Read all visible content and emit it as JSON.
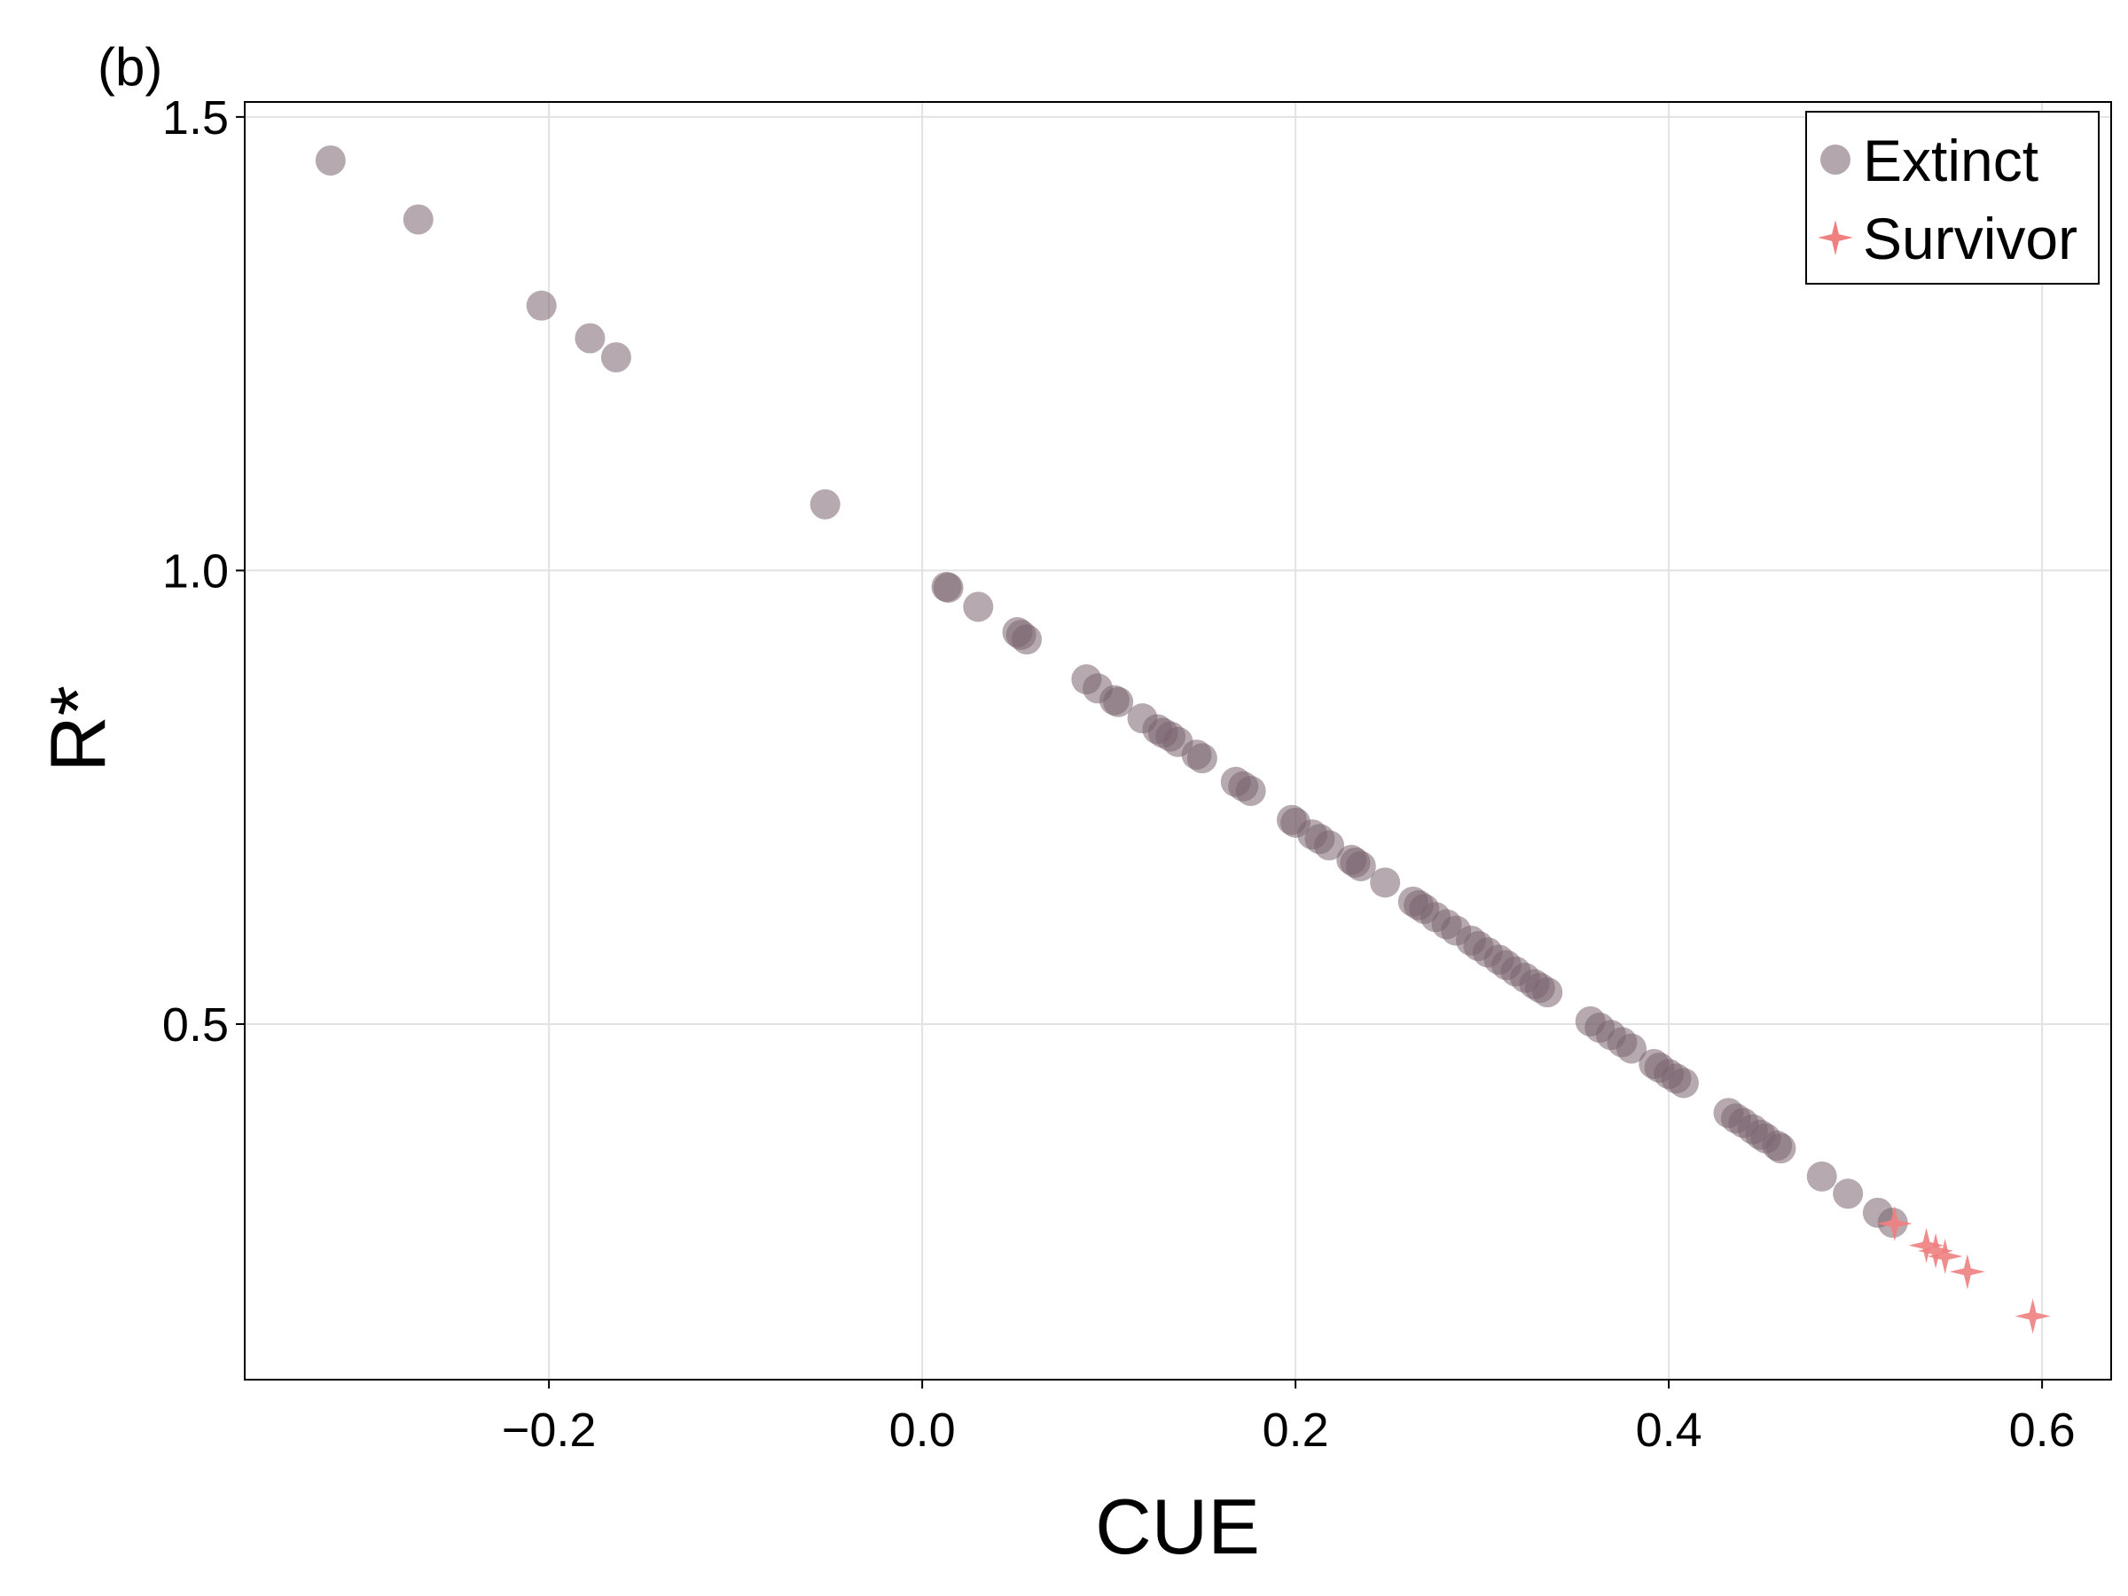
{
  "panel_label": "(b)",
  "colors": {
    "extinct": "#7a6570",
    "survivor": "#f08080",
    "grid": "#e2e2e2",
    "frame": "#000000"
  },
  "chart_data": {
    "type": "scatter",
    "xlabel": "CUE",
    "ylabel": "R*",
    "xlim": [
      -0.363,
      0.637
    ],
    "ylim": [
      0.108,
      1.5165
    ],
    "xticks": [
      -0.2,
      0.0,
      0.2,
      0.4,
      0.6
    ],
    "xtick_labels": [
      "−0.2",
      "0.0",
      "0.2",
      "0.4",
      "0.6"
    ],
    "yticks": [
      0.5,
      1.0,
      1.5
    ],
    "ytick_labels": [
      "0.5",
      "1.0",
      "1.5"
    ],
    "grid": true,
    "legend": {
      "position": "top-right",
      "entries": [
        {
          "label": "Extinct",
          "marker": "circle",
          "color": "#b3a6ad"
        },
        {
          "label": "Survivor",
          "marker": "star",
          "color": "#f08080"
        }
      ]
    },
    "series": [
      {
        "name": "Extinct",
        "marker": "circle",
        "points": [
          [
            -0.317,
            1.452
          ],
          [
            -0.27,
            1.387
          ],
          [
            -0.204,
            1.292
          ],
          [
            -0.178,
            1.256
          ],
          [
            -0.164,
            1.235
          ],
          [
            -0.052,
            1.073
          ],
          [
            0.013,
            0.982
          ],
          [
            0.014,
            0.981
          ],
          [
            0.03,
            0.96
          ],
          [
            0.051,
            0.932
          ],
          [
            0.053,
            0.929
          ],
          [
            0.056,
            0.924
          ],
          [
            0.088,
            0.88
          ],
          [
            0.094,
            0.87
          ],
          [
            0.103,
            0.857
          ],
          [
            0.105,
            0.855
          ],
          [
            0.118,
            0.837
          ],
          [
            0.126,
            0.825
          ],
          [
            0.129,
            0.821
          ],
          [
            0.133,
            0.817
          ],
          [
            0.137,
            0.811
          ],
          [
            0.147,
            0.797
          ],
          [
            0.15,
            0.793
          ],
          [
            0.168,
            0.767
          ],
          [
            0.172,
            0.762
          ],
          [
            0.176,
            0.757
          ],
          [
            0.198,
            0.725
          ],
          [
            0.2,
            0.722
          ],
          [
            0.209,
            0.709
          ],
          [
            0.213,
            0.704
          ],
          [
            0.218,
            0.697
          ],
          [
            0.23,
            0.681
          ],
          [
            0.232,
            0.678
          ],
          [
            0.235,
            0.674
          ],
          [
            0.248,
            0.656
          ],
          [
            0.263,
            0.635
          ],
          [
            0.266,
            0.631
          ],
          [
            0.269,
            0.627
          ],
          [
            0.275,
            0.618
          ],
          [
            0.281,
            0.61
          ],
          [
            0.286,
            0.603
          ],
          [
            0.294,
            0.592
          ],
          [
            0.298,
            0.586
          ],
          [
            0.303,
            0.579
          ],
          [
            0.309,
            0.571
          ],
          [
            0.313,
            0.565
          ],
          [
            0.318,
            0.558
          ],
          [
            0.323,
            0.551
          ],
          [
            0.328,
            0.544
          ],
          [
            0.331,
            0.54
          ],
          [
            0.335,
            0.535
          ],
          [
            0.358,
            0.503
          ],
          [
            0.363,
            0.496
          ],
          [
            0.369,
            0.488
          ],
          [
            0.375,
            0.48
          ],
          [
            0.38,
            0.473
          ],
          [
            0.392,
            0.456
          ],
          [
            0.395,
            0.452
          ],
          [
            0.4,
            0.445
          ],
          [
            0.404,
            0.44
          ],
          [
            0.408,
            0.435
          ],
          [
            0.432,
            0.402
          ],
          [
            0.436,
            0.396
          ],
          [
            0.44,
            0.391
          ],
          [
            0.445,
            0.384
          ],
          [
            0.449,
            0.378
          ],
          [
            0.452,
            0.374
          ],
          [
            0.458,
            0.366
          ],
          [
            0.46,
            0.363
          ],
          [
            0.482,
            0.332
          ],
          [
            0.496,
            0.313
          ],
          [
            0.512,
            0.292
          ],
          [
            0.52,
            0.281
          ]
        ]
      },
      {
        "name": "Survivor",
        "marker": "star",
        "points": [
          [
            0.521,
            0.28
          ],
          [
            0.538,
            0.256
          ],
          [
            0.543,
            0.25
          ],
          [
            0.548,
            0.244
          ],
          [
            0.56,
            0.227
          ],
          [
            0.595,
            0.178
          ]
        ]
      }
    ]
  }
}
